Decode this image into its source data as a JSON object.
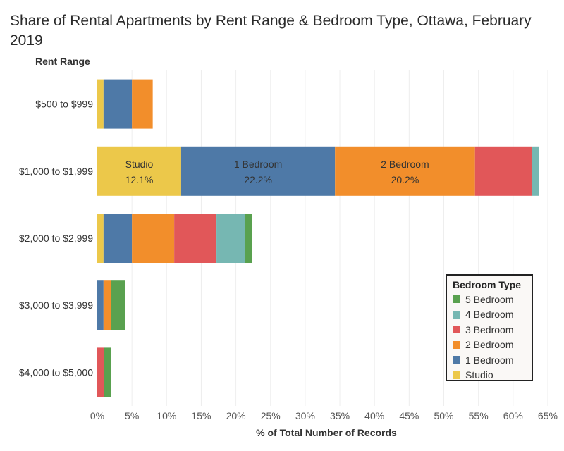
{
  "chart_data": {
    "type": "bar",
    "orientation": "horizontal",
    "stacked": true,
    "title": "Share of Rental Apartments by Rent Range & Bedroom Type, Ottawa, February 2019",
    "row_header": "Rent Range",
    "xlabel": "% of Total Number of Records",
    "xlim": [
      0,
      66
    ],
    "x_ticks": [
      "0%",
      "5%",
      "10%",
      "15%",
      "20%",
      "25%",
      "30%",
      "35%",
      "40%",
      "45%",
      "50%",
      "55%",
      "60%",
      "65%"
    ],
    "x_tick_values": [
      0,
      5,
      10,
      15,
      20,
      25,
      30,
      35,
      40,
      45,
      50,
      55,
      60,
      65
    ],
    "grid": true,
    "categories": [
      "$500 to $999",
      "$1,000 to $1,999",
      "$2,000 to $2,999",
      "$3,000 to $3,999",
      "$4,000 to $5,000"
    ],
    "series": [
      {
        "name": "Studio",
        "color": "#ecc84a",
        "values": [
          0.9,
          12.1,
          0.9,
          0.0,
          0.0
        ]
      },
      {
        "name": "1 Bedroom",
        "color": "#4e79a7",
        "values": [
          4.1,
          22.2,
          4.1,
          0.9,
          0.0
        ]
      },
      {
        "name": "2 Bedroom",
        "color": "#f28e2b",
        "values": [
          3.0,
          20.2,
          6.1,
          1.1,
          0.0
        ]
      },
      {
        "name": "3 Bedroom",
        "color": "#e15759",
        "values": [
          0.0,
          8.2,
          6.1,
          0.0,
          1.0
        ]
      },
      {
        "name": "4 Bedroom",
        "color": "#76b7b2",
        "values": [
          0.0,
          1.0,
          4.1,
          0.0,
          0.0
        ]
      },
      {
        "name": "5 Bedroom",
        "color": "#59a14f",
        "values": [
          0.0,
          0.0,
          1.0,
          2.0,
          1.0
        ]
      }
    ],
    "data_labels": [
      {
        "category": "$1,000 to $1,999",
        "series": "Studio",
        "label": "Studio",
        "value_label": "12.1%"
      },
      {
        "category": "$1,000 to $1,999",
        "series": "1 Bedroom",
        "label": "1 Bedroom",
        "value_label": "22.2%"
      },
      {
        "category": "$1,000 to $1,999",
        "series": "2 Bedroom",
        "label": "2 Bedroom",
        "value_label": "20.2%"
      }
    ],
    "legend": {
      "title": "Bedroom Type",
      "position": "bottom-right",
      "items": [
        {
          "label": "5 Bedroom",
          "color": "#59a14f"
        },
        {
          "label": "4 Bedroom",
          "color": "#76b7b2"
        },
        {
          "label": "3 Bedroom",
          "color": "#e15759"
        },
        {
          "label": "2 Bedroom",
          "color": "#f28e2b"
        },
        {
          "label": "1 Bedroom",
          "color": "#4e79a7"
        },
        {
          "label": "Studio",
          "color": "#ecc84a"
        }
      ]
    }
  }
}
